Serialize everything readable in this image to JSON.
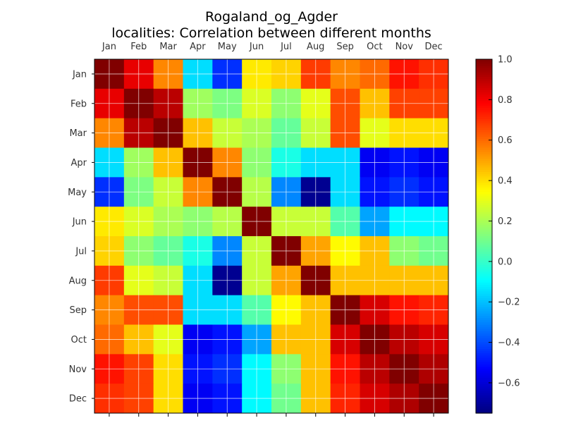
{
  "chart_data": {
    "type": "heatmap",
    "title_line1": "Rogaland_og_Agder",
    "title_line2": "localities: Correlation between different months",
    "x_categories": [
      "Jan",
      "Feb",
      "Mar",
      "Apr",
      "May",
      "Jun",
      "Jul",
      "Aug",
      "Sep",
      "Oct",
      "Nov",
      "Dec"
    ],
    "y_categories": [
      "Jan",
      "Feb",
      "Mar",
      "Apr",
      "May",
      "Jun",
      "Jul",
      "Aug",
      "Sep",
      "Oct",
      "Nov",
      "Dec"
    ],
    "values": [
      [
        1.0,
        0.82,
        0.55,
        -0.15,
        -0.45,
        0.38,
        0.42,
        0.68,
        0.55,
        0.6,
        0.75,
        0.7
      ],
      [
        0.82,
        1.0,
        0.9,
        0.18,
        0.12,
        0.28,
        0.15,
        0.3,
        0.65,
        0.45,
        0.67,
        0.67
      ],
      [
        0.55,
        0.9,
        1.0,
        0.45,
        0.25,
        0.2,
        0.08,
        0.25,
        0.65,
        0.3,
        0.4,
        0.4
      ],
      [
        -0.15,
        0.18,
        0.45,
        1.0,
        0.55,
        0.15,
        -0.05,
        -0.15,
        -0.15,
        -0.55,
        -0.5,
        -0.55
      ],
      [
        -0.45,
        0.12,
        0.25,
        0.55,
        1.0,
        0.22,
        -0.3,
        -0.72,
        -0.15,
        -0.5,
        -0.45,
        -0.5
      ],
      [
        0.38,
        0.28,
        0.2,
        0.15,
        0.22,
        1.0,
        0.25,
        0.25,
        0.05,
        -0.25,
        -0.1,
        -0.1
      ],
      [
        0.42,
        0.15,
        0.08,
        -0.05,
        -0.3,
        0.25,
        1.0,
        0.5,
        0.35,
        0.45,
        0.15,
        0.1
      ],
      [
        0.68,
        0.3,
        0.25,
        -0.15,
        -0.72,
        0.25,
        0.5,
        1.0,
        0.45,
        0.45,
        0.45,
        0.45
      ],
      [
        0.55,
        0.65,
        0.65,
        -0.15,
        -0.15,
        0.05,
        0.35,
        0.45,
        1.0,
        0.85,
        0.75,
        0.72
      ],
      [
        0.6,
        0.45,
        0.3,
        -0.55,
        -0.5,
        -0.25,
        0.45,
        0.45,
        0.85,
        1.0,
        0.9,
        0.85
      ],
      [
        0.75,
        0.67,
        0.4,
        -0.5,
        -0.45,
        -0.1,
        0.15,
        0.45,
        0.75,
        0.9,
        1.0,
        0.92
      ],
      [
        0.7,
        0.67,
        0.4,
        -0.55,
        -0.5,
        -0.1,
        0.1,
        0.45,
        0.72,
        0.85,
        0.92,
        1.0
      ]
    ],
    "colormap": "jet",
    "vmin": -0.75,
    "vmax": 1.0,
    "colorbar_ticks": [
      1.0,
      0.8,
      0.6,
      0.4,
      0.2,
      0.0,
      -0.2,
      -0.4,
      -0.6
    ],
    "colorbar_tick_labels": [
      "1.0",
      "0.8",
      "0.6",
      "0.4",
      "0.2",
      "0.0",
      "−0.2",
      "−0.4",
      "−0.6"
    ],
    "grid": true,
    "x_tick_position": "top",
    "colorbar_position": "right"
  }
}
